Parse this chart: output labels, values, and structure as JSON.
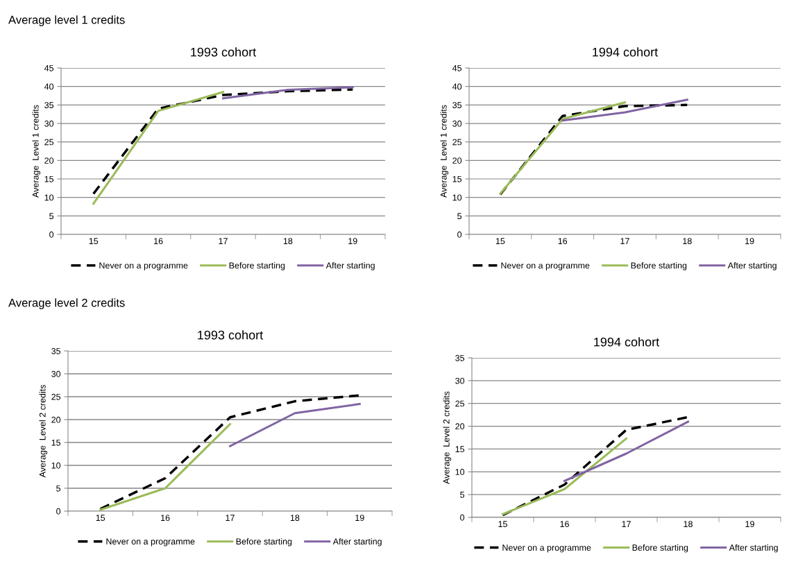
{
  "chart_data": [
    {
      "type": "line",
      "title": "1993 cohort",
      "ylabel": "Average  Level 1 credits",
      "annotations": [
        "Average level 1 credits"
      ],
      "categories": [
        "15",
        "16",
        "17",
        "18",
        "19"
      ],
      "ylim": [
        0,
        45
      ],
      "yticks": [
        0,
        5,
        10,
        15,
        20,
        25,
        30,
        35,
        40,
        45
      ],
      "grid": "y",
      "legend": "bottom",
      "series": [
        {
          "name": "Never on a programme",
          "color": "#000000",
          "line_style": "dashed",
          "values": [
            11,
            34,
            37.7,
            38.7,
            39.2
          ]
        },
        {
          "name": "Before starting",
          "color": "#9bbb59",
          "line_style": "solid",
          "values": [
            8.3,
            33.4,
            38.5,
            null,
            null
          ]
        },
        {
          "name": "After starting",
          "color": "#8064a2",
          "line_style": "solid",
          "values": [
            null,
            null,
            36.8,
            39.1,
            39.8
          ]
        }
      ]
    },
    {
      "type": "line",
      "title": "1994 cohort",
      "ylabel": "Average  Level 1 credits",
      "categories": [
        "15",
        "16",
        "17",
        "18",
        "19"
      ],
      "ylim": [
        0,
        45
      ],
      "yticks": [
        0,
        5,
        10,
        15,
        20,
        25,
        30,
        35,
        40,
        45
      ],
      "grid": "y",
      "legend": "bottom",
      "series": [
        {
          "name": "Never on a programme",
          "color": "#000000",
          "line_style": "dashed",
          "values": [
            10.8,
            32,
            34.7,
            35,
            null
          ]
        },
        {
          "name": "Before starting",
          "color": "#9bbb59",
          "line_style": "solid",
          "values": [
            11,
            31.2,
            35.7,
            null,
            null
          ]
        },
        {
          "name": "After starting",
          "color": "#8064a2",
          "line_style": "solid",
          "values": [
            null,
            30.8,
            33,
            36.4,
            null
          ]
        }
      ]
    },
    {
      "type": "line",
      "title": "1993 cohort",
      "ylabel": "Average  Level 2 credits",
      "annotations": [
        "Average level 2 credits"
      ],
      "categories": [
        "15",
        "16",
        "17",
        "18",
        "19"
      ],
      "ylim": [
        0,
        35
      ],
      "yticks": [
        0,
        5,
        10,
        15,
        20,
        25,
        30,
        35
      ],
      "grid": "y",
      "legend": "bottom",
      "series": [
        {
          "name": "Never on a programme",
          "color": "#000000",
          "line_style": "dashed",
          "values": [
            0.5,
            7.2,
            20.5,
            24,
            25.3
          ]
        },
        {
          "name": "Before starting",
          "color": "#9bbb59",
          "line_style": "solid",
          "values": [
            0.3,
            5,
            19,
            null,
            null
          ]
        },
        {
          "name": "After starting",
          "color": "#8064a2",
          "line_style": "solid",
          "values": [
            null,
            null,
            14.2,
            21.4,
            23.4
          ]
        }
      ]
    },
    {
      "type": "line",
      "title": "1994 cohort",
      "ylabel": "Average  Level 2 credits",
      "categories": [
        "15",
        "16",
        "17",
        "18",
        "19"
      ],
      "ylim": [
        0,
        35
      ],
      "yticks": [
        0,
        5,
        10,
        15,
        20,
        25,
        30,
        35
      ],
      "grid": "y",
      "legend": "bottom",
      "series": [
        {
          "name": "Never on a programme",
          "color": "#000000",
          "line_style": "dashed",
          "values": [
            0.5,
            7.2,
            19.2,
            22,
            null
          ]
        },
        {
          "name": "Before starting",
          "color": "#9bbb59",
          "line_style": "solid",
          "values": [
            0.7,
            6.2,
            17.3,
            null,
            null
          ]
        },
        {
          "name": "After starting",
          "color": "#8064a2",
          "line_style": "solid",
          "values": [
            null,
            8,
            14,
            21,
            null
          ]
        }
      ]
    }
  ]
}
